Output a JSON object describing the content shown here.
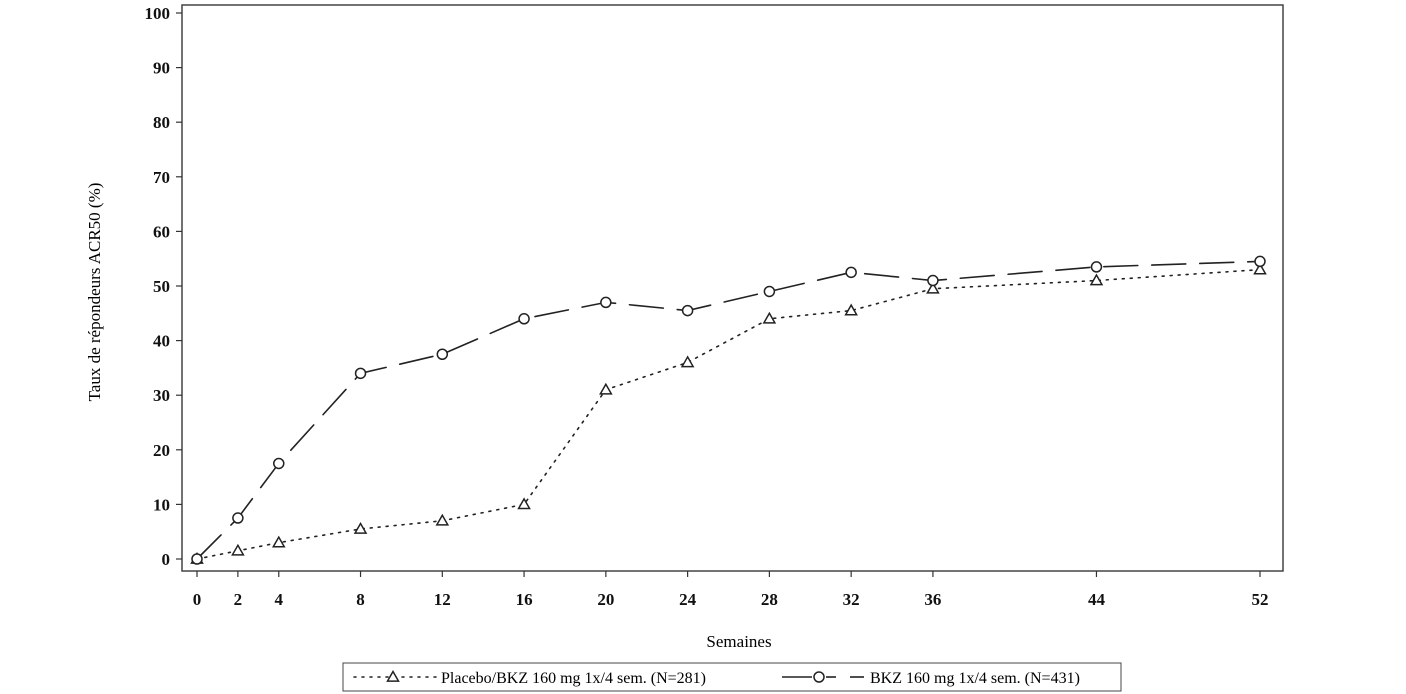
{
  "chart_data": {
    "type": "line",
    "title": "",
    "xlabel": "Semaines",
    "ylabel": "Taux de répondeurs ACR50 (%)",
    "x_ticks": [
      0,
      2,
      4,
      8,
      12,
      16,
      20,
      24,
      28,
      32,
      36,
      44,
      52
    ],
    "y_ticks": [
      0,
      10,
      20,
      30,
      40,
      50,
      60,
      70,
      80,
      90,
      100
    ],
    "xlim": [
      0,
      52
    ],
    "ylim": [
      0,
      100
    ],
    "grid": false,
    "legend_position": "bottom",
    "series": [
      {
        "name": "Placebo/BKZ 160 mg 1x/4 sem. (N=281)",
        "marker": "triangle",
        "line_style": "dotted",
        "x": [
          0,
          2,
          4,
          8,
          12,
          16,
          20,
          24,
          28,
          32,
          36,
          44,
          52
        ],
        "values": [
          0,
          1.5,
          3,
          5.5,
          7,
          10,
          31,
          36,
          44,
          45.5,
          49.5,
          51,
          53
        ]
      },
      {
        "name": "BKZ 160 mg 1x/4 sem. (N=431)",
        "marker": "circle",
        "line_style": "dashed",
        "x": [
          0,
          2,
          4,
          8,
          12,
          16,
          20,
          24,
          28,
          32,
          36,
          44,
          52
        ],
        "values": [
          0,
          7.5,
          17.5,
          34,
          37.5,
          44,
          47,
          45.5,
          49,
          52.5,
          51,
          53.5,
          54.5
        ]
      }
    ]
  }
}
